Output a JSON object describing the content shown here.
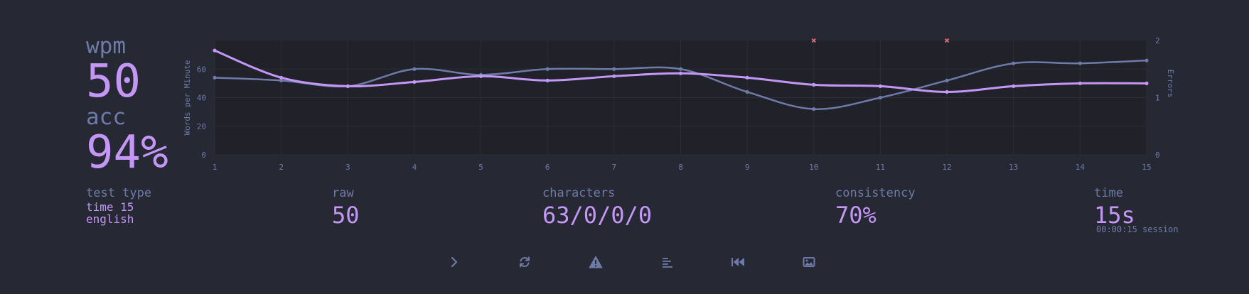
{
  "stats": {
    "wpm_label": "wpm",
    "wpm_value": "50",
    "acc_label": "acc",
    "acc_value": "94%",
    "test_type_label": "test type",
    "test_type_line1": "time 15",
    "test_type_line2": "english",
    "raw_label": "raw",
    "raw_value": "50",
    "characters_label": "characters",
    "characters_value": "63/0/0/0",
    "consistency_label": "consistency",
    "consistency_value": "70%",
    "time_label": "time",
    "time_value": "15s",
    "session_text": "00:00:15 session"
  },
  "chart_data": {
    "type": "line",
    "ylabel": "Words per Minute",
    "y2label": "Errors",
    "x": [
      1,
      2,
      3,
      4,
      5,
      6,
      7,
      8,
      9,
      10,
      11,
      12,
      13,
      14,
      15
    ],
    "ylim": [
      0,
      80
    ],
    "yticks": [
      0,
      20,
      40,
      60
    ],
    "y2lim": [
      0,
      2
    ],
    "y2ticks": [
      0,
      1,
      2
    ],
    "series": [
      {
        "values": [
          54,
          52,
          48,
          60,
          56,
          60,
          60,
          60,
          44,
          32,
          40,
          52,
          64,
          64,
          66
        ],
        "color": "#6e7ba8"
      },
      {
        "values": [
          73,
          54,
          48,
          51,
          55,
          52,
          55,
          57,
          54,
          49,
          48,
          44,
          48,
          50,
          50
        ],
        "color": "#c497f7"
      }
    ],
    "errors": [
      {
        "x": 10,
        "count": 2
      },
      {
        "x": 12,
        "count": 2
      }
    ],
    "error_color": "#e06c75",
    "grid": true
  },
  "toolbar": {
    "icons": [
      "chevron-right-icon",
      "restart-icon",
      "warning-icon",
      "words-history-icon",
      "replay-icon",
      "screenshot-icon"
    ]
  }
}
